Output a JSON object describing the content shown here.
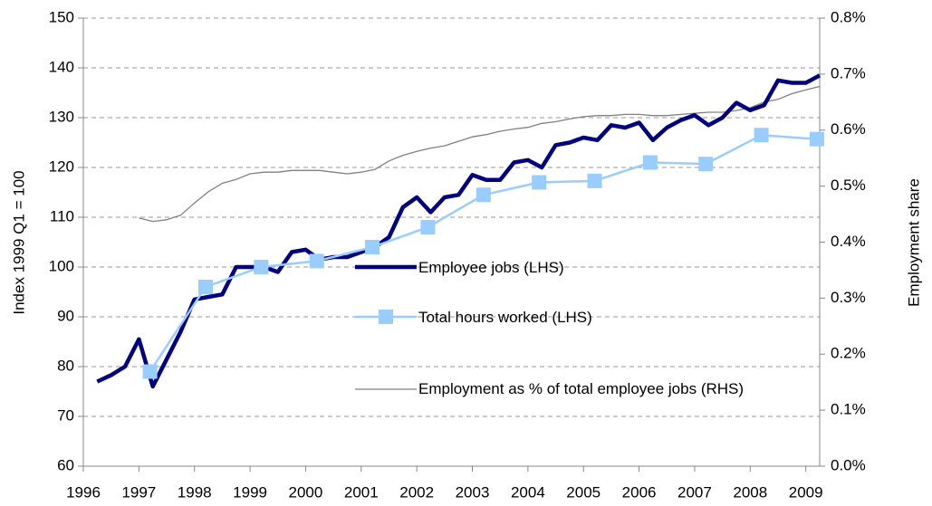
{
  "chart_data": {
    "type": "line",
    "xlim": [
      1996,
      2009.25
    ],
    "xticks": [
      1996,
      1997,
      1998,
      1999,
      2000,
      2001,
      2002,
      2003,
      2004,
      2005,
      2006,
      2007,
      2008,
      2009
    ],
    "ylim": [
      60,
      150
    ],
    "yticks": [
      60,
      70,
      80,
      90,
      100,
      110,
      120,
      130,
      140,
      150
    ],
    "y2lim": [
      0,
      0.8
    ],
    "y2ticks": [
      {
        "value": 0,
        "label": "0.0%"
      },
      {
        "value": 0.1,
        "label": "0.1%"
      },
      {
        "value": 0.2,
        "label": "0.2%"
      },
      {
        "value": 0.3,
        "label": "0.3%"
      },
      {
        "value": 0.4,
        "label": "0.4%"
      },
      {
        "value": 0.5,
        "label": "0.5%"
      },
      {
        "value": 0.6,
        "label": "0.6%"
      },
      {
        "value": 0.7,
        "label": "0.7%"
      },
      {
        "value": 0.8,
        "label": "0.8%"
      }
    ],
    "ylabel": "Index 1999 Q1 = 100",
    "y2label": "Employment share",
    "grid": true,
    "series": [
      {
        "name": "Employee jobs (LHS)",
        "color": "#000080",
        "x": [
          1996.25,
          1996.5,
          1996.75,
          1997,
          1997.25,
          1997.5,
          1997.75,
          1998,
          1998.25,
          1998.5,
          1998.75,
          1999,
          1999.25,
          1999.5,
          1999.75,
          2000,
          2000.25,
          2000.5,
          2000.75,
          2001,
          2001.25,
          2001.5,
          2001.75,
          2002,
          2002.25,
          2002.5,
          2002.75,
          2003,
          2003.25,
          2003.5,
          2003.75,
          2004,
          2004.25,
          2004.5,
          2004.75,
          2005,
          2005.25,
          2005.5,
          2005.75,
          2006,
          2006.25,
          2006.5,
          2006.75,
          2007,
          2007.25,
          2007.5,
          2007.75,
          2008,
          2008.25,
          2008.5,
          2008.75,
          2009,
          2009.25
        ],
        "values": [
          77,
          78.3,
          80,
          85.5,
          76,
          81.5,
          87,
          93.5,
          94,
          94.5,
          100,
          100,
          100,
          99,
          103,
          103.5,
          101.5,
          102,
          102,
          103,
          104,
          106,
          112,
          114,
          111,
          114,
          114.5,
          118.5,
          117.5,
          117.5,
          121,
          121.5,
          120,
          124.5,
          125,
          126,
          125.5,
          128.5,
          128,
          129,
          125.5,
          128,
          129.5,
          130.5,
          128.5,
          130,
          133,
          131.5,
          132.5,
          137.5,
          137,
          137,
          138.5
        ]
      },
      {
        "name": "Total hours worked (LHS)",
        "color": "#99ccff",
        "marker": "square",
        "x": [
          1997.2,
          1998.2,
          1999.2,
          2000.2,
          2001.2,
          2002.2,
          2003.2,
          2004.2,
          2005.2,
          2006.2,
          2007.2,
          2008.2,
          2009.2
        ],
        "values": [
          79,
          96,
          100,
          101.2,
          104,
          108,
          114.5,
          117,
          117.3,
          121,
          120.7,
          126.5,
          125.7
        ]
      },
      {
        "name": "Employment as % of total employee jobs (RHS)",
        "color": "#808080",
        "axis": "y2",
        "x": [
          1997,
          1997.25,
          1997.5,
          1997.75,
          1998,
          1998.25,
          1998.5,
          1998.75,
          1999,
          1999.25,
          1999.5,
          1999.75,
          2000,
          2000.25,
          2000.5,
          2000.75,
          2001,
          2001.25,
          2001.5,
          2001.75,
          2002,
          2002.25,
          2002.5,
          2002.75,
          2003,
          2003.25,
          2003.5,
          2003.75,
          2004,
          2004.25,
          2004.5,
          2004.75,
          2005,
          2005.25,
          2005.5,
          2005.75,
          2006,
          2006.25,
          2006.5,
          2006.75,
          2007,
          2007.25,
          2007.5,
          2007.75,
          2008,
          2008.25,
          2008.5,
          2008.75,
          2009,
          2009.25
        ],
        "values": [
          0.443,
          0.437,
          0.44,
          0.448,
          0.47,
          0.49,
          0.505,
          0.512,
          0.522,
          0.525,
          0.525,
          0.528,
          0.528,
          0.528,
          0.525,
          0.522,
          0.525,
          0.53,
          0.545,
          0.555,
          0.562,
          0.568,
          0.572,
          0.58,
          0.588,
          0.592,
          0.598,
          0.602,
          0.605,
          0.612,
          0.615,
          0.62,
          0.624,
          0.626,
          0.626,
          0.628,
          0.628,
          0.626,
          0.626,
          0.628,
          0.63,
          0.632,
          0.632,
          0.635,
          0.64,
          0.65,
          0.655,
          0.665,
          0.672,
          0.678
        ]
      }
    ]
  }
}
